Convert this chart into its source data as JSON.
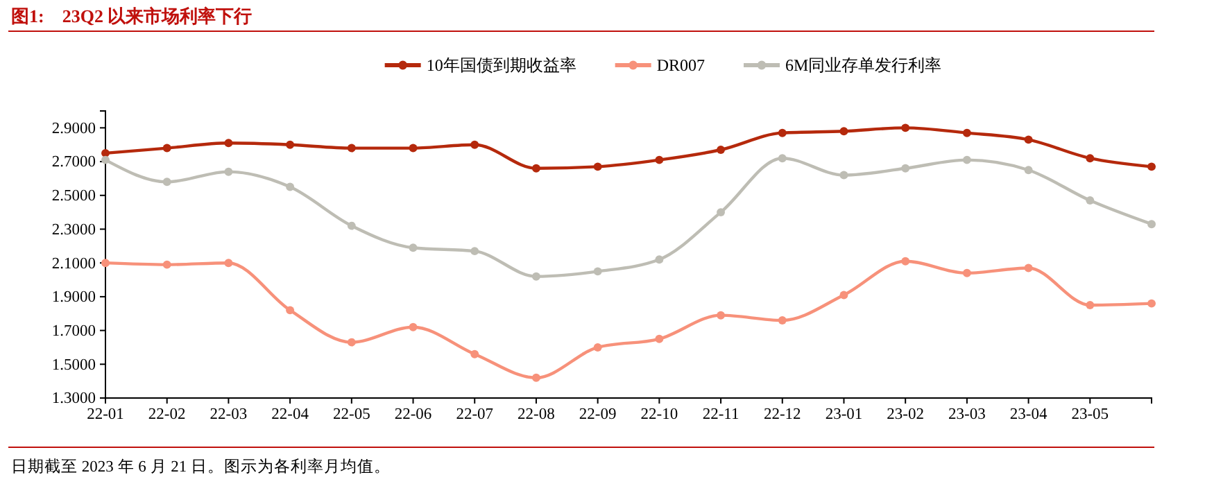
{
  "chart_data": {
    "type": "line",
    "title": "图1:　23Q2 以来市场利率下行",
    "categories": [
      "22-01",
      "22-02",
      "22-03",
      "22-04",
      "22-05",
      "22-06",
      "22-07",
      "22-08",
      "22-09",
      "22-10",
      "22-11",
      "22-12",
      "23-01",
      "23-02",
      "23-03",
      "23-04",
      "23-05",
      null
    ],
    "series": [
      {
        "name": "10年国债到期收益率",
        "color": "#b5290c",
        "values": [
          2.75,
          2.78,
          2.81,
          2.8,
          2.78,
          2.78,
          2.8,
          2.66,
          2.67,
          2.71,
          2.77,
          2.87,
          2.88,
          2.9,
          2.87,
          2.83,
          2.72,
          2.67
        ]
      },
      {
        "name": "DR007",
        "color": "#f7917a",
        "values": [
          2.1,
          2.09,
          2.1,
          1.82,
          1.63,
          1.72,
          1.56,
          1.42,
          1.6,
          1.65,
          1.79,
          1.76,
          1.91,
          2.11,
          2.04,
          2.07,
          1.85,
          1.86
        ]
      },
      {
        "name": "6M同业存单发行利率",
        "color": "#bebdb4",
        "values": [
          2.71,
          2.58,
          2.64,
          2.55,
          2.32,
          2.19,
          2.17,
          2.02,
          2.05,
          2.12,
          2.4,
          2.72,
          2.62,
          2.66,
          2.71,
          2.65,
          2.47,
          2.33
        ]
      }
    ],
    "ylim": [
      1.3,
      3.0
    ],
    "yticks": [
      {
        "value": 1.3,
        "label": "1.3000"
      },
      {
        "value": 1.5,
        "label": "1.5000"
      },
      {
        "value": 1.7,
        "label": "1.7000"
      },
      {
        "value": 1.9,
        "label": "1.9000"
      },
      {
        "value": 2.1,
        "label": "2.1000"
      },
      {
        "value": 2.3,
        "label": "2.3000"
      },
      {
        "value": 2.5,
        "label": "2.5000"
      },
      {
        "value": 2.7,
        "label": "2.7000"
      },
      {
        "value": 2.9,
        "label": "2.9000"
      }
    ],
    "legend": "top",
    "marker": "circle",
    "grid": false,
    "annotations": [
      "日期截至 2023 年 6 月 21 日。图示为各利率月均值。"
    ]
  }
}
